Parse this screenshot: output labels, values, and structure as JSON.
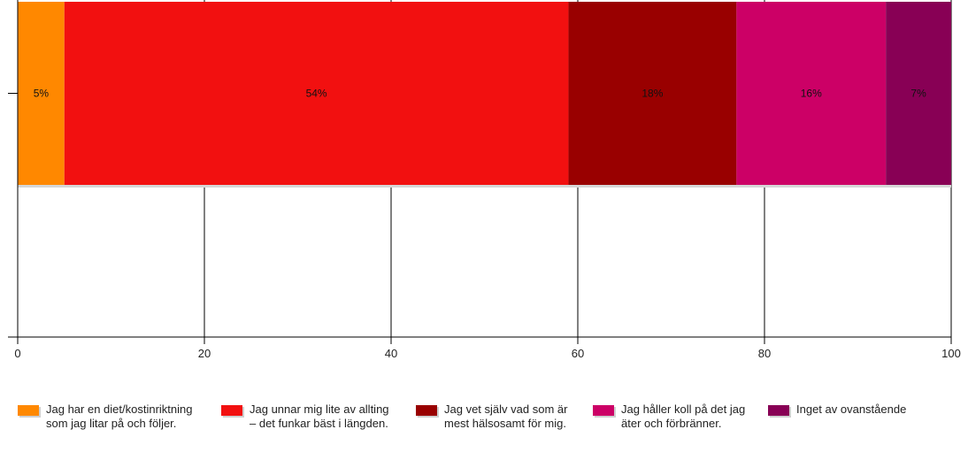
{
  "chart_data": {
    "type": "bar",
    "orientation": "horizontal",
    "stacked": true,
    "title": "",
    "xlabel": "",
    "ylabel": "",
    "xlim": [
      0,
      100
    ],
    "xticks": [
      0,
      20,
      40,
      60,
      80,
      100
    ],
    "grid": true,
    "legend_position": "bottom",
    "series": [
      {
        "name": "Jag har en diet/kostinriktning\nsom jag litar på och följer.",
        "value": 5,
        "label": "5%",
        "color": "#ff8800"
      },
      {
        "name": "Jag unnar mig lite av allting\n– det funkar bäst i längden.",
        "value": 54,
        "label": "54%",
        "color": "#f21010"
      },
      {
        "name": "Jag vet själv vad som är\nmest hälsosamt för mig.",
        "value": 18,
        "label": "18%",
        "color": "#990000"
      },
      {
        "name": "Jag håller koll på det jag\näter och förbränner.",
        "value": 16,
        "label": "16%",
        "color": "#cc0066"
      },
      {
        "name": "Inget av ovanstående",
        "value": 7,
        "label": "7%",
        "color": "#880055"
      }
    ]
  }
}
